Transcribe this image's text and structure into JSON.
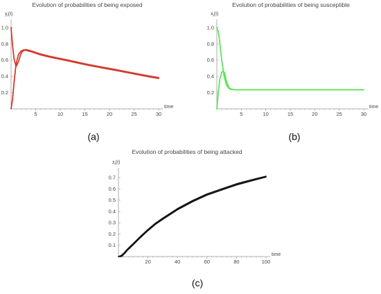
{
  "chart_data": [
    {
      "id": "a",
      "type": "line",
      "title": "Evolution of probabilities of being exposed",
      "ylabel": "y_i(t)",
      "xlabel": "time",
      "panel_label": "(a)",
      "xlim": [
        0,
        30
      ],
      "ylim": [
        0,
        1.05
      ],
      "xticks": [
        5,
        10,
        15,
        20,
        25,
        30
      ],
      "yticks": [
        0.2,
        0.4,
        0.6,
        0.8,
        1.0
      ],
      "ytick_labels": [
        "0.2",
        "0.4",
        "0.6",
        "0.8",
        "1.0"
      ],
      "color": "#d33a2c",
      "series": [
        {
          "x": [
            0,
            0.3,
            0.6,
            1.0,
            1.5,
            2.0,
            2.5,
            3,
            4,
            5,
            6,
            8,
            10,
            12,
            15,
            18,
            20,
            22,
            25,
            28,
            30
          ],
          "y": [
            1.0,
            0.78,
            0.62,
            0.52,
            0.58,
            0.68,
            0.72,
            0.72,
            0.705,
            0.685,
            0.665,
            0.635,
            0.61,
            0.585,
            0.545,
            0.51,
            0.488,
            0.465,
            0.43,
            0.395,
            0.375
          ]
        },
        {
          "x": [
            0,
            0.3,
            0.6,
            1.0,
            1.5,
            2.0,
            2.5,
            3,
            4,
            5,
            6,
            8,
            10,
            12,
            15,
            18,
            20,
            22,
            25,
            28,
            30
          ],
          "y": [
            0.0,
            0.12,
            0.32,
            0.55,
            0.67,
            0.71,
            0.725,
            0.73,
            0.715,
            0.695,
            0.675,
            0.645,
            0.62,
            0.595,
            0.555,
            0.52,
            0.498,
            0.475,
            0.44,
            0.405,
            0.385
          ]
        }
      ]
    },
    {
      "id": "b",
      "type": "line",
      "title": "Evolution of probabilities of being susceptible",
      "ylabel": "x_i(t)",
      "xlabel": "time",
      "panel_label": "(b)",
      "xlim": [
        0,
        30
      ],
      "ylim": [
        0,
        1.05
      ],
      "xticks": [
        5,
        10,
        15,
        20,
        25,
        30
      ],
      "yticks": [
        0.2,
        0.4,
        0.6,
        0.8,
        1.0
      ],
      "ytick_labels": [
        "0.2",
        "0.4",
        "0.6",
        "0.8",
        "1.0"
      ],
      "color": "#5ee35a",
      "series": [
        {
          "x": [
            0,
            0.3,
            0.6,
            1.0,
            1.5,
            2.0,
            2.5,
            3,
            4,
            5,
            10,
            20,
            30
          ],
          "y": [
            1.0,
            0.95,
            0.82,
            0.6,
            0.4,
            0.29,
            0.25,
            0.238,
            0.235,
            0.235,
            0.235,
            0.235,
            0.235
          ]
        },
        {
          "x": [
            0,
            0.3,
            0.6,
            1.0,
            1.3,
            1.6,
            2.0,
            2.5,
            3,
            4,
            5,
            10,
            20,
            30
          ],
          "y": [
            0.0,
            0.2,
            0.36,
            0.45,
            0.47,
            0.44,
            0.33,
            0.26,
            0.24,
            0.235,
            0.235,
            0.235,
            0.235,
            0.235
          ]
        }
      ]
    },
    {
      "id": "c",
      "type": "line",
      "title": "Evolution of probabilities of being attacked",
      "ylabel": "z_i(t)",
      "xlabel": "time",
      "panel_label": "(c)",
      "xlim": [
        0,
        100
      ],
      "ylim": [
        0,
        0.75
      ],
      "xticks": [
        20,
        40,
        60,
        80,
        100
      ],
      "yticks": [
        0.1,
        0.2,
        0.3,
        0.4,
        0.5,
        0.6,
        0.7
      ],
      "ytick_labels": [
        "0.1",
        "0.2",
        "0.3",
        "0.4",
        "0.5",
        "0.6",
        "0.7"
      ],
      "color": "#111111",
      "series": [
        {
          "x": [
            0,
            2,
            4,
            6,
            8,
            10,
            15,
            20,
            25,
            30,
            40,
            50,
            60,
            70,
            80,
            90,
            100
          ],
          "y": [
            0.0,
            0.0,
            0.025,
            0.055,
            0.08,
            0.105,
            0.17,
            0.23,
            0.285,
            0.33,
            0.415,
            0.485,
            0.545,
            0.59,
            0.635,
            0.67,
            0.705
          ]
        },
        {
          "x": [
            0,
            2,
            4,
            6,
            8,
            10,
            15,
            20,
            25,
            30,
            40,
            50,
            60,
            70,
            80,
            90,
            100
          ],
          "y": [
            0.0,
            0.01,
            0.035,
            0.065,
            0.09,
            0.115,
            0.18,
            0.24,
            0.295,
            0.34,
            0.425,
            0.495,
            0.555,
            0.6,
            0.645,
            0.68,
            0.712
          ]
        }
      ]
    }
  ]
}
